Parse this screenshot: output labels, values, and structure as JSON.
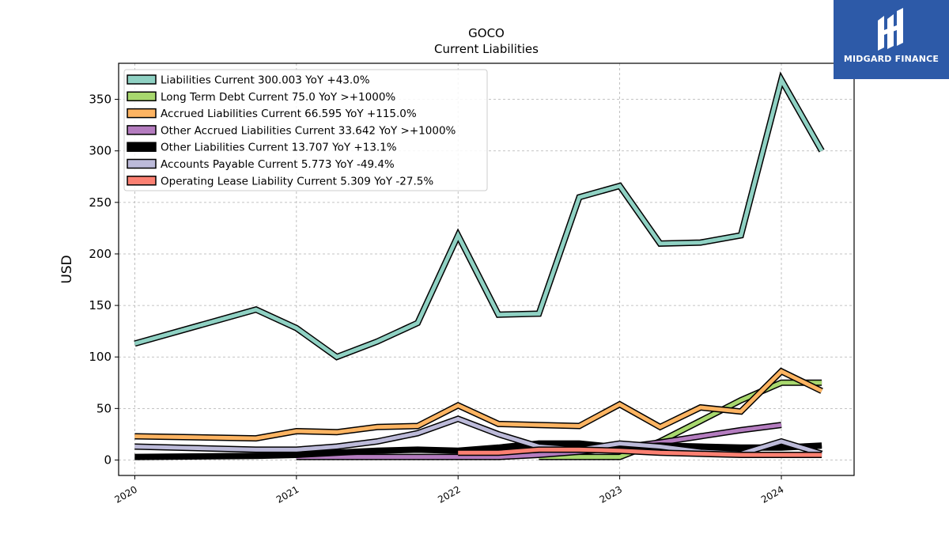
{
  "header": {
    "ticker": "GOCO",
    "subtitle": "Current  Liabilities"
  },
  "brand": {
    "name": "MIDGARD FINANCE",
    "color": "#2d5aa8"
  },
  "chart_data": {
    "type": "line",
    "title": "GOCO",
    "subtitle": "Current  Liabilities",
    "xlabel": "",
    "ylabel": "USD",
    "xlim": [
      2019.9,
      2024.45
    ],
    "ylim": [
      -15,
      385
    ],
    "x_ticks": [
      "2020",
      "2021",
      "2022",
      "2023",
      "2024"
    ],
    "y_ticks": [
      "0",
      "50",
      "100",
      "150",
      "200",
      "250",
      "300",
      "350"
    ],
    "grid": true,
    "legend_position": "top-left",
    "series": [
      {
        "name": "Liabilities Current",
        "legend": "Liabilities Current  300.003 YoY +43.0%",
        "color": "#8fd1c3",
        "x": [
          2020.0,
          2020.75,
          2021.0,
          2021.25,
          2021.5,
          2021.75,
          2022.0,
          2022.25,
          2022.5,
          2022.75,
          2023.0,
          2023.25,
          2023.5,
          2023.75,
          2024.0,
          2024.25
        ],
        "y": [
          113,
          146,
          128,
          100,
          115,
          133,
          218,
          141,
          142,
          255,
          266,
          210,
          211,
          218,
          369,
          300
        ]
      },
      {
        "name": "Long Term Debt Current",
        "legend": "Long Term Debt Current  75.0 YoY >+1000%",
        "color": "#a8d86e",
        "x": [
          2022.5,
          2022.75,
          2023.0,
          2023.25,
          2023.5,
          2023.75,
          2024.0,
          2024.25
        ],
        "y": [
          3,
          3,
          3,
          18,
          38,
          58,
          75,
          75
        ]
      },
      {
        "name": "Accrued Liabilities Current",
        "legend": "Accrued Liabilities Current  66.595 YoY +115.0%",
        "color": "#fdb462",
        "x": [
          2020.0,
          2020.75,
          2021.0,
          2021.25,
          2021.5,
          2021.75,
          2022.0,
          2022.25,
          2022.5,
          2022.75,
          2023.0,
          2023.25,
          2023.5,
          2023.75,
          2024.0,
          2024.25
        ],
        "y": [
          23,
          21,
          28,
          27,
          32,
          33,
          53,
          35,
          34,
          33,
          54,
          32,
          51,
          47,
          86,
          67
        ]
      },
      {
        "name": "Other Accrued Liabilities Current",
        "legend": "Other Accrued Liabilities Current  33.642 YoY >+1000%",
        "color": "#b47cbf",
        "x": [
          2021.0,
          2021.25,
          2021.5,
          2021.75,
          2022.0,
          2022.25,
          2022.5,
          2022.75,
          2023.0,
          2023.25,
          2023.5,
          2023.75,
          2024.0
        ],
        "y": [
          3,
          3,
          3,
          3,
          3,
          3,
          5,
          8,
          12,
          17,
          23,
          29,
          34
        ]
      },
      {
        "name": "Other Liabilities Current",
        "legend": "Other Liabilities Current  13.707 YoY +13.1%",
        "color": "#000000",
        "x": [
          2020.0,
          2020.75,
          2021.0,
          2021.25,
          2021.5,
          2021.75,
          2022.0,
          2022.25,
          2022.5,
          2022.75,
          2023.0,
          2023.25,
          2023.5,
          2023.75,
          2024.0,
          2024.25
        ],
        "y": [
          3,
          4,
          5,
          7,
          9,
          10,
          9,
          12,
          16,
          16,
          12,
          14,
          13,
          12,
          12,
          14
        ]
      },
      {
        "name": "Accounts Payable Current",
        "legend": "Accounts Payable Current  5.773 YoY -49.4%",
        "color": "#bcbad9",
        "x": [
          2020.0,
          2020.75,
          2021.0,
          2021.25,
          2021.5,
          2021.75,
          2022.0,
          2022.25,
          2022.5,
          2022.75,
          2023.0,
          2023.25,
          2023.5,
          2023.75,
          2024.0,
          2024.25
        ],
        "y": [
          13,
          10,
          10,
          13,
          18,
          26,
          40,
          25,
          13,
          10,
          16,
          13,
          8,
          6,
          18,
          6
        ]
      },
      {
        "name": "Operating Lease Liability Current",
        "legend": "Operating Lease Liability Current  5.309 YoY -27.5%",
        "color": "#fb8072",
        "x": [
          2022.0,
          2022.25,
          2022.5,
          2022.75,
          2023.0,
          2023.25,
          2023.5,
          2023.75,
          2024.0,
          2024.25
        ],
        "y": [
          7,
          7,
          10,
          10,
          9,
          7,
          6,
          5,
          5,
          5
        ]
      }
    ]
  }
}
